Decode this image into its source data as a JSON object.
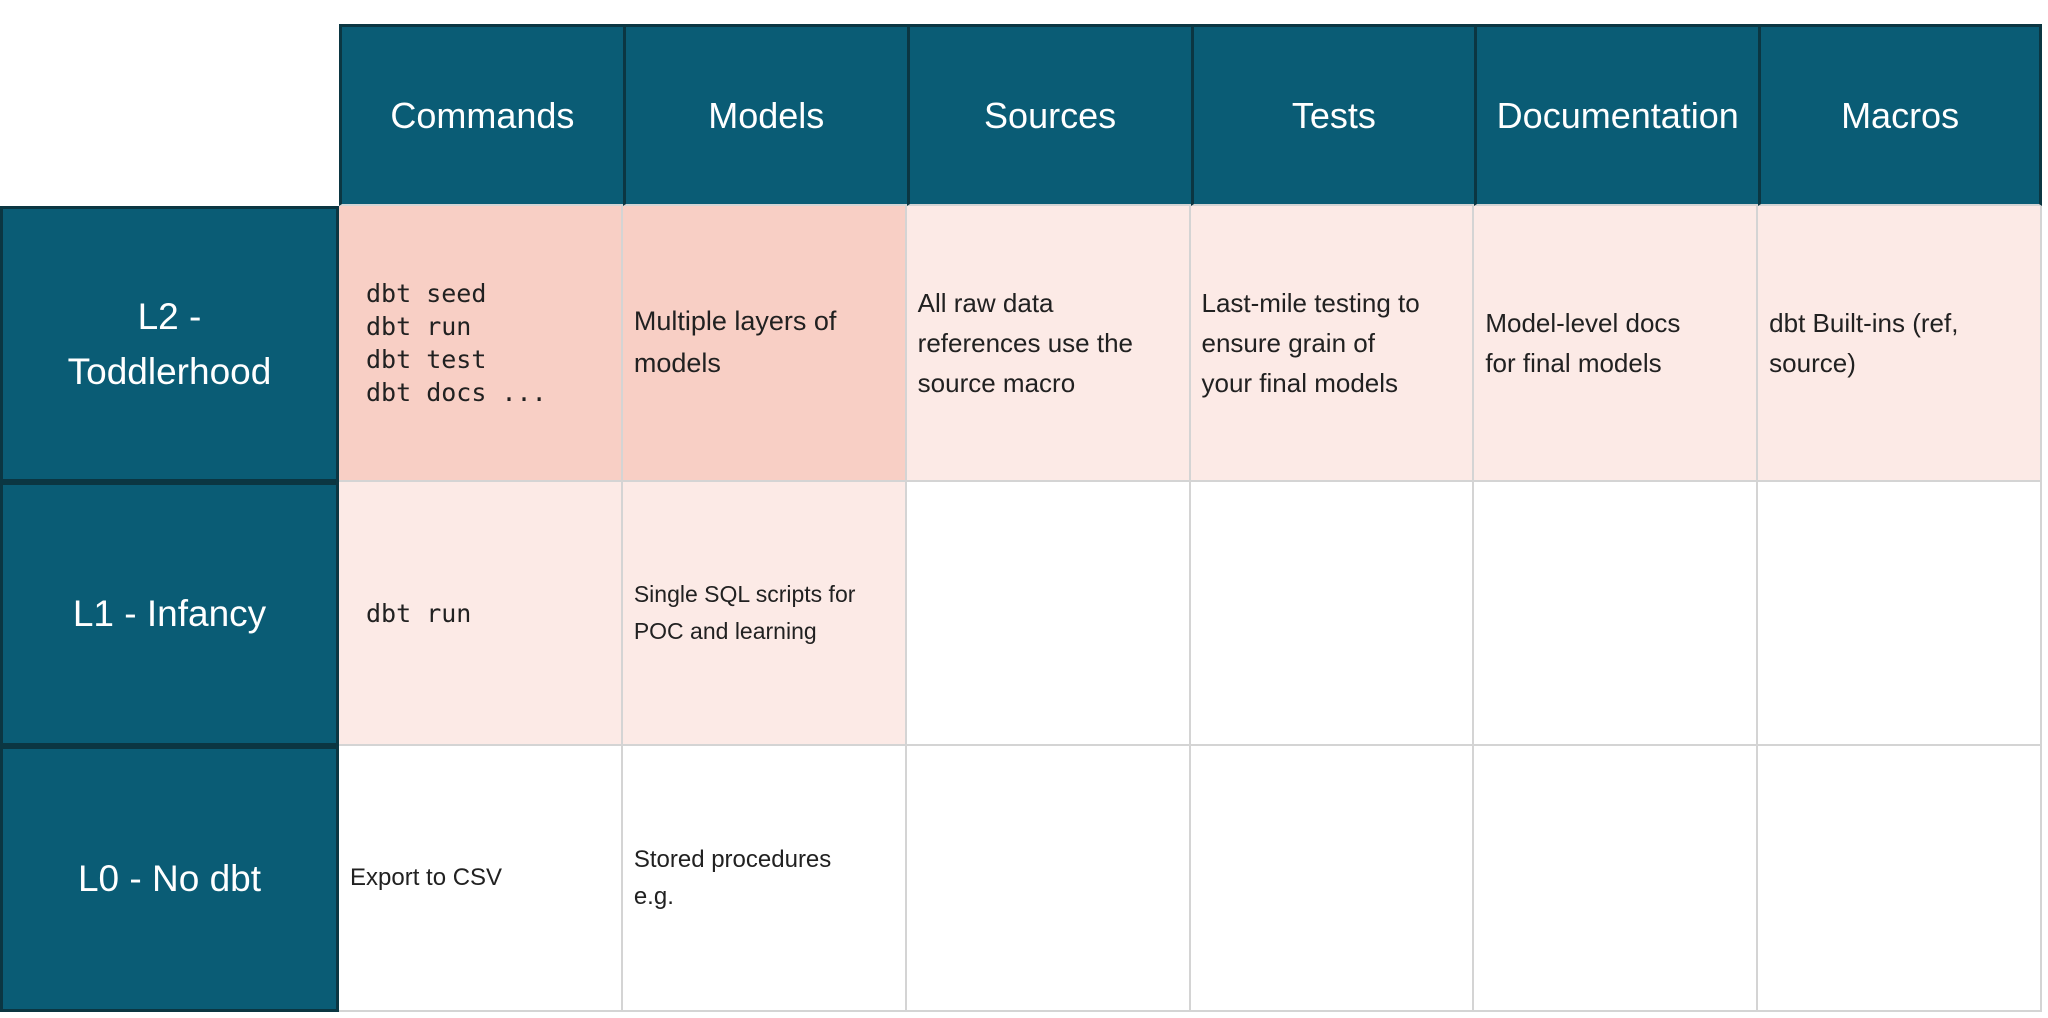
{
  "table": {
    "columns": [
      "Commands",
      "Models",
      "Sources",
      "Tests",
      "Documentation",
      "Macros"
    ],
    "rows": [
      {
        "id": "l2",
        "label": "L2 - Toddlerhood",
        "lines": [
          "L2 -",
          "Toddlerhood"
        ],
        "cells": [
          {
            "lines": [
              "dbt seed",
              "dbt run",
              "dbt test",
              "dbt docs ..."
            ],
            "tone": "strong",
            "style": "code"
          },
          {
            "lines": [
              "Multiple layers of",
              "models"
            ],
            "tone": "strong",
            "size": "lg"
          },
          {
            "lines": [
              "All raw data",
              "references use the",
              "source macro"
            ],
            "tone": "light",
            "size": "md"
          },
          {
            "lines": [
              "Last-mile testing to",
              "ensure grain of",
              "your final models"
            ],
            "tone": "light",
            "size": "md"
          },
          {
            "lines": [
              "Model-level docs",
              "for final models"
            ],
            "tone": "light",
            "size": "md"
          },
          {
            "lines": [
              "dbt Built-ins (ref,",
              "source)"
            ],
            "tone": "light",
            "size": "md"
          }
        ]
      },
      {
        "id": "l1",
        "label": "L1 - Infancy",
        "lines": [
          "L1 - Infancy"
        ],
        "cells": [
          {
            "lines": [
              "dbt run"
            ],
            "tone": "light",
            "style": "code"
          },
          {
            "lines": [
              "Single SQL scripts for",
              "POC and learning"
            ],
            "tone": "light",
            "size": "xs"
          },
          {
            "lines": [],
            "tone": "none"
          },
          {
            "lines": [],
            "tone": "none"
          },
          {
            "lines": [],
            "tone": "none"
          },
          {
            "lines": [],
            "tone": "none"
          }
        ]
      },
      {
        "id": "l0",
        "label": "L0 - No dbt",
        "lines": [
          "L0 - No dbt"
        ],
        "cells": [
          {
            "lines": [
              "Export to CSV"
            ],
            "tone": "none",
            "size": "sm"
          },
          {
            "lines": [
              "Stored procedures",
              "e.g."
            ],
            "tone": "none",
            "size": "sm"
          },
          {
            "lines": [],
            "tone": "none"
          },
          {
            "lines": [],
            "tone": "none"
          },
          {
            "lines": [],
            "tone": "none"
          },
          {
            "lines": [],
            "tone": "none"
          }
        ]
      }
    ],
    "colors": {
      "header_bg": "#0a5c75",
      "header_border": "#0b3642",
      "cell_strong": "#f8cfc5",
      "cell_light": "#fceae6",
      "cell_empty": "#ffffff",
      "gridline": "#d4d4d4",
      "header_text": "#ffffff",
      "body_text": "#212121"
    }
  }
}
